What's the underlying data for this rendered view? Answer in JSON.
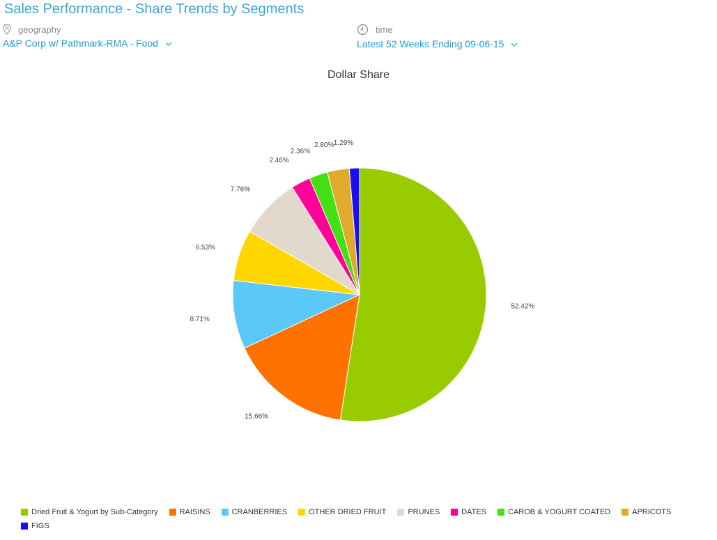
{
  "header": {
    "title": "Sales Performance - Share Trends by Segments"
  },
  "filters": {
    "geography": {
      "label": "geography",
      "value": "A&P Corp w/ Pathmark-RMA - Food",
      "icon": "location-pin-icon"
    },
    "time": {
      "label": "time",
      "value": "Latest 52 Weeks Ending 09-06-15",
      "icon": "clock-icon"
    }
  },
  "chart_data": {
    "type": "pie",
    "title": "Dollar Share",
    "legend_position": "bottom",
    "slices": [
      {
        "name": "Dried Fruit & Yogurt by Sub-Category",
        "value": 52.42,
        "label": "52.42%",
        "color": "#99cc00"
      },
      {
        "name": "RAISINS",
        "value": 15.66,
        "label": "15.66%",
        "color": "#ff7200"
      },
      {
        "name": "CRANBERRIES",
        "value": 8.71,
        "label": "8.71%",
        "color": "#5bc8f8"
      },
      {
        "name": "OTHER DRIED FRUIT",
        "value": 6.53,
        "label": "6.53%",
        "color": "#ffd600"
      },
      {
        "name": "PRUNES",
        "value": 7.76,
        "label": "7.76%",
        "color": "#e3d8cd"
      },
      {
        "name": "DATES",
        "value": 2.46,
        "label": "2.46%",
        "color": "#ff0099"
      },
      {
        "name": "CAROB & YOGURT COATED",
        "value": 2.36,
        "label": "2.36%",
        "color": "#44e014"
      },
      {
        "name": "APRICOTS",
        "value": 2.8,
        "label": "2.80%",
        "color": "#e0aa2c"
      },
      {
        "name": "FIGS",
        "value": 1.29,
        "label": "1.29%",
        "color": "#1a0ff0"
      }
    ]
  }
}
